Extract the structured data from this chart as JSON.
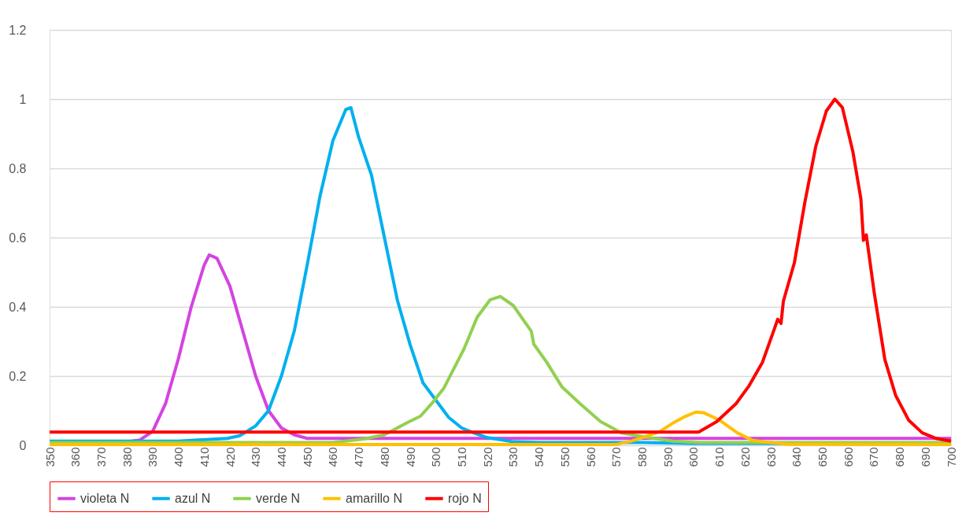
{
  "chart_data": {
    "type": "line",
    "xlim": [
      350,
      700
    ],
    "xticks": [
      350,
      360,
      370,
      380,
      390,
      400,
      410,
      420,
      430,
      440,
      450,
      460,
      470,
      480,
      490,
      500,
      510,
      520,
      530,
      540,
      550,
      560,
      570,
      580,
      590,
      600,
      610,
      620,
      630,
      640,
      650,
      660,
      670,
      680,
      690,
      700
    ],
    "ylim": [
      0,
      1.2
    ],
    "yticks": [
      0,
      0.2,
      0.4,
      0.6,
      0.8,
      1,
      1.2
    ],
    "grid": "y",
    "legend": "bottom",
    "marker": "none",
    "line_style": "solid",
    "series": [
      {
        "name": "violeta N",
        "color": "#d444e0",
        "x": [
          350,
          380,
          385,
          390,
          395,
          400,
          405,
          410,
          412,
          415,
          420,
          425,
          430,
          435,
          440,
          445,
          450,
          460,
          500,
          600,
          700
        ],
        "values": [
          0.01,
          0.01,
          0.015,
          0.04,
          0.12,
          0.25,
          0.4,
          0.52,
          0.55,
          0.54,
          0.46,
          0.33,
          0.2,
          0.1,
          0.05,
          0.03,
          0.02,
          0.02,
          0.02,
          0.02,
          0.02
        ]
      },
      {
        "name": "azul N",
        "color": "#00b0f0",
        "x": [
          350,
          400,
          419,
          424,
          430,
          435,
          440,
          445,
          450,
          455,
          460,
          465,
          467,
          470,
          475,
          480,
          485,
          490,
          495,
          500,
          505,
          510,
          515,
          520,
          530,
          540,
          580,
          600,
          700
        ],
        "values": [
          0.012,
          0.012,
          0.02,
          0.028,
          0.056,
          0.1,
          0.2,
          0.33,
          0.52,
          0.72,
          0.88,
          0.97,
          0.975,
          0.89,
          0.78,
          0.6,
          0.42,
          0.29,
          0.18,
          0.13,
          0.08,
          0.05,
          0.035,
          0.022,
          0.01,
          0.008,
          0.008,
          0.005,
          0.005
        ]
      },
      {
        "name": "verde N",
        "color": "#92d050",
        "x": [
          350,
          460,
          472,
          480,
          489,
          494,
          499,
          503,
          511,
          516,
          521,
          525,
          530,
          537,
          538,
          543,
          549,
          556,
          564,
          572,
          581,
          592,
          602,
          700
        ],
        "values": [
          0.008,
          0.008,
          0.018,
          0.03,
          0.066,
          0.084,
          0.126,
          0.164,
          0.28,
          0.37,
          0.42,
          0.43,
          0.404,
          0.33,
          0.292,
          0.24,
          0.168,
          0.12,
          0.068,
          0.036,
          0.024,
          0.012,
          0.008,
          0.008
        ]
      },
      {
        "name": "amarillo N",
        "color": "#ffc000",
        "x": [
          350,
          570,
          572,
          576,
          581,
          587,
          592,
          597,
          601,
          604,
          608,
          611,
          617,
          623,
          627,
          637,
          700
        ],
        "values": [
          0.002,
          0.002,
          0.006,
          0.012,
          0.024,
          0.04,
          0.064,
          0.084,
          0.096,
          0.094,
          0.08,
          0.068,
          0.036,
          0.014,
          0.01,
          0.003,
          0.002
        ]
      },
      {
        "name": "rojo N",
        "color": "#ff0000",
        "x": [
          350,
          602,
          609,
          616.5,
          621.6,
          626.8,
          631.4,
          632.7,
          634,
          634.9,
          639.2,
          643.3,
          647.5,
          651.6,
          654.9,
          657.8,
          661.9,
          665,
          666,
          667.1,
          670.2,
          674.3,
          678.5,
          683.6,
          688.8,
          694,
          700
        ],
        "values": [
          0.038,
          0.038,
          0.068,
          0.12,
          0.172,
          0.24,
          0.336,
          0.364,
          0.352,
          0.416,
          0.528,
          0.704,
          0.864,
          0.966,
          1.0,
          0.976,
          0.848,
          0.712,
          0.592,
          0.608,
          0.44,
          0.248,
          0.144,
          0.072,
          0.036,
          0.02,
          0.012
        ]
      }
    ]
  }
}
